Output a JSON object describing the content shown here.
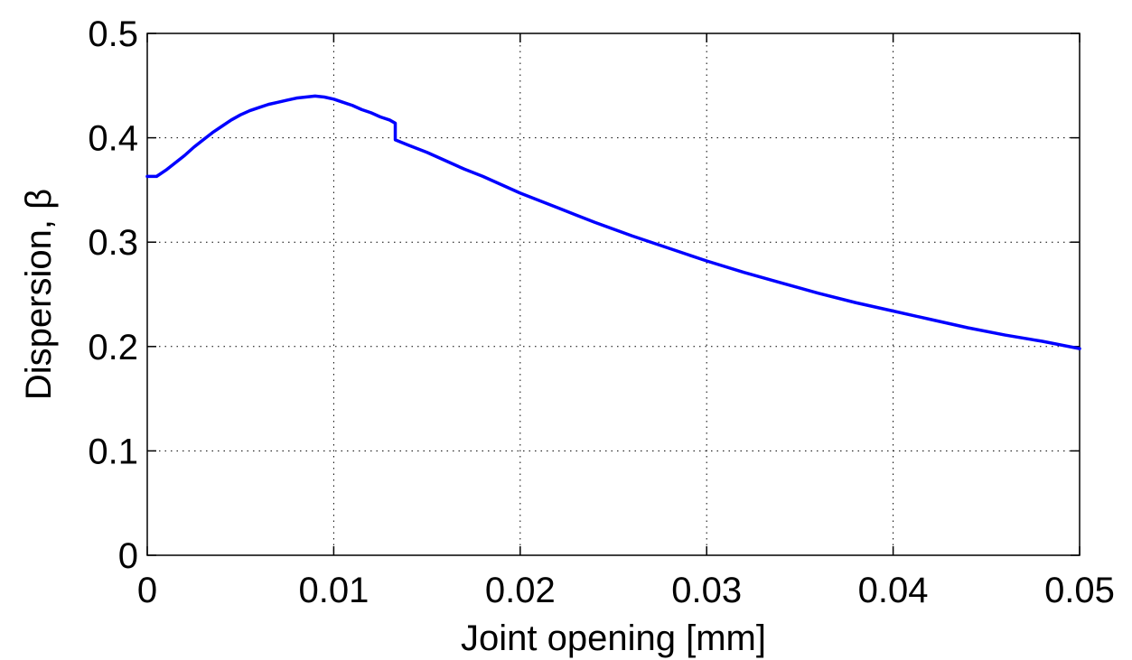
{
  "chart_data": {
    "type": "line",
    "title": "",
    "xlabel": "Joint opening [mm]",
    "ylabel": "Dispersion, β",
    "xlim": [
      0,
      0.05
    ],
    "ylim": [
      0,
      0.5
    ],
    "xticks": [
      0,
      0.01,
      0.02,
      0.03,
      0.04,
      0.05
    ],
    "xtick_labels": [
      "0",
      "0.01",
      "0.02",
      "0.03",
      "0.04",
      "0.05"
    ],
    "yticks": [
      0,
      0.1,
      0.2,
      0.3,
      0.4,
      0.5
    ],
    "ytick_labels": [
      "0",
      "0.1",
      "0.2",
      "0.3",
      "0.4",
      "0.5"
    ],
    "grid": true,
    "series": [
      {
        "color": "#0000ff",
        "x": [
          0,
          0.0005,
          0.001,
          0.0015,
          0.002,
          0.0025,
          0.003,
          0.0035,
          0.004,
          0.0045,
          0.005,
          0.0055,
          0.006,
          0.0065,
          0.007,
          0.0075,
          0.008,
          0.0085,
          0.009,
          0.0095,
          0.01,
          0.0105,
          0.011,
          0.0115,
          0.012,
          0.0125,
          0.013,
          0.0133,
          0.0133,
          0.014,
          0.015,
          0.016,
          0.017,
          0.018,
          0.019,
          0.02,
          0.022,
          0.024,
          0.026,
          0.028,
          0.03,
          0.032,
          0.034,
          0.036,
          0.038,
          0.04,
          0.042,
          0.044,
          0.046,
          0.048,
          0.05
        ],
        "y": [
          0.363,
          0.363,
          0.369,
          0.376,
          0.383,
          0.391,
          0.398,
          0.405,
          0.411,
          0.417,
          0.422,
          0.426,
          0.429,
          0.432,
          0.434,
          0.436,
          0.438,
          0.439,
          0.44,
          0.439,
          0.437,
          0.434,
          0.431,
          0.427,
          0.424,
          0.42,
          0.417,
          0.414,
          0.398,
          0.393,
          0.386,
          0.378,
          0.37,
          0.363,
          0.355,
          0.347,
          0.333,
          0.319,
          0.306,
          0.294,
          0.282,
          0.271,
          0.261,
          0.251,
          0.242,
          0.234,
          0.226,
          0.218,
          0.211,
          0.205,
          0.198
        ]
      }
    ]
  }
}
